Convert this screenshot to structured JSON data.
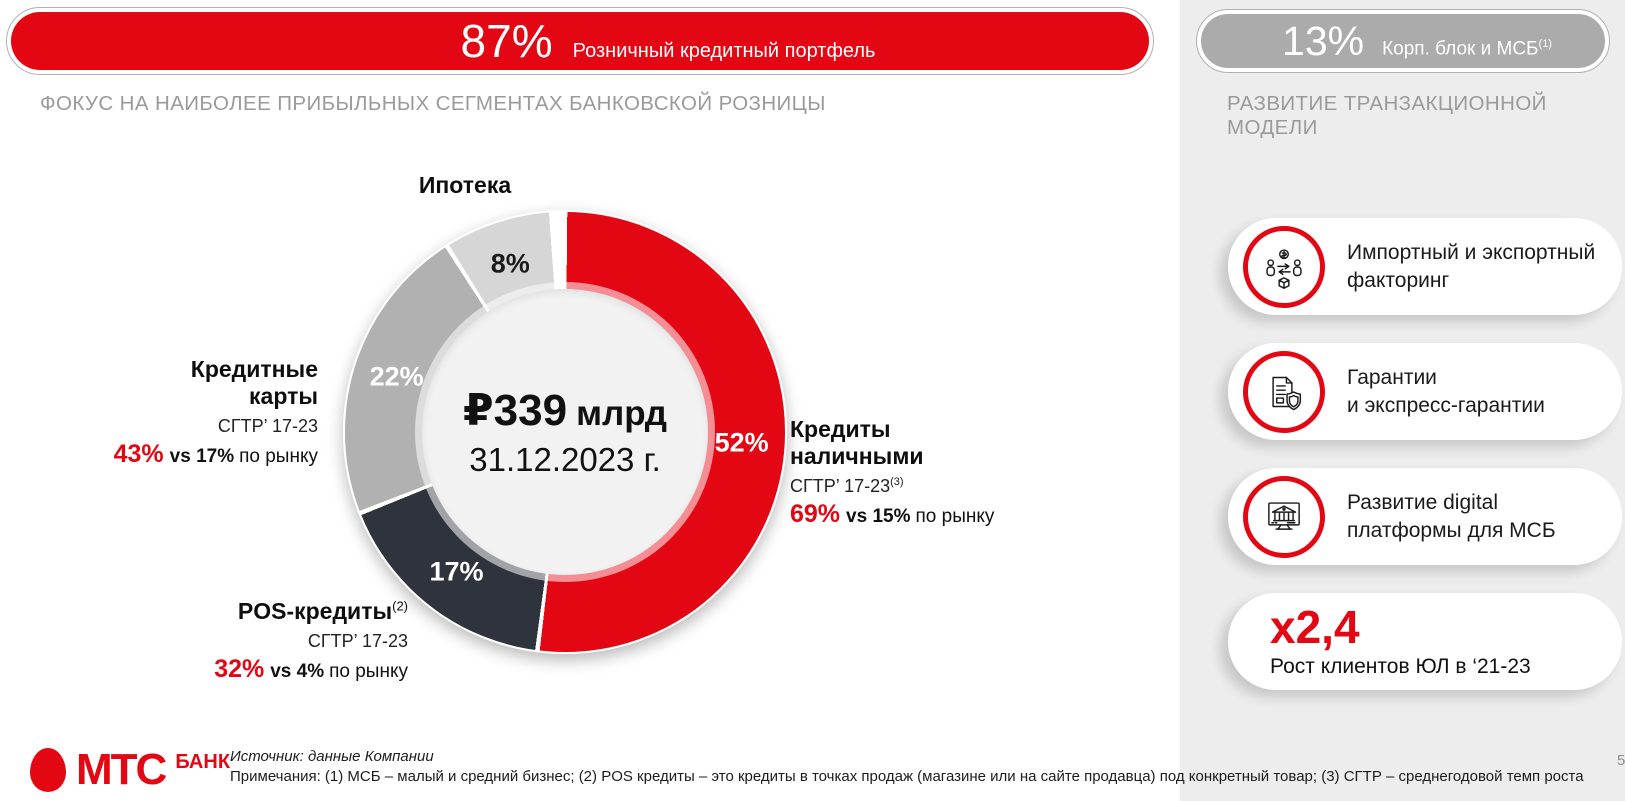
{
  "banners": {
    "retail": {
      "value": "87%",
      "label": "Розничный кредитный портфель"
    },
    "corporate": {
      "value": "13%",
      "label": "Корп. блок и МСБ",
      "label_sup": "(1)"
    }
  },
  "sections": {
    "left_title": "ФОКУС НА НАИБОЛЕЕ ПРИБЫЛЬНЫХ СЕГМЕНТАХ БАНКОВСКОЙ РОЗНИЦЫ",
    "right_title": "РАЗВИТИЕ ТРАНЗАКЦИОННОЙ МОДЕЛИ"
  },
  "chart_data": {
    "type": "pie",
    "donut": true,
    "start_angle_deg": 0,
    "direction": "clockwise",
    "center_value_main": "₽339",
    "center_value_unit": "млрд",
    "center_date": "31.12.2023 г.",
    "segments": [
      {
        "label": "Кредиты наличными",
        "value_pct": 52,
        "color": "#e30613",
        "text_color": "#ffffff",
        "cagr": "СГТР’ 17-23",
        "cagr_sup": "(3)",
        "growth": "69%",
        "vs": "vs 15%",
        "suffix": "по рынку"
      },
      {
        "label": "POS-кредиты",
        "label_sup": "(2)",
        "value_pct": 17,
        "color": "#2f343c",
        "text_color": "#ffffff",
        "cagr": "СГТР’ 17-23",
        "growth": "32%",
        "vs": "vs 4%",
        "suffix": "по рынку"
      },
      {
        "label": "Кредитные карты",
        "value_pct": 22,
        "color": "#b1b1b1",
        "text_color": "#ffffff",
        "cagr": "СГТР’ 17-23",
        "growth": "43%",
        "vs": "vs 17%",
        "suffix": "по рынку"
      },
      {
        "label": "Ипотека",
        "value_pct": 8,
        "color": "#d6d6d6",
        "text_color": "#1a1a1a"
      }
    ]
  },
  "right_panel": {
    "cards": [
      {
        "icon": "factoring-icon",
        "text": "Импортный и экспортный\nфакторинг"
      },
      {
        "icon": "guarantee-icon",
        "text": "Гарантии\nи экспресс-гарантии"
      },
      {
        "icon": "digital-platform-icon",
        "text": "Развитие digital\nплатформы для МСБ"
      }
    ],
    "metric_card": {
      "value": "x2,4",
      "label": "Рост клиентов ЮЛ в ‘21-23"
    }
  },
  "footer": {
    "logo": {
      "brand": "МТС",
      "suffix": "БАНК"
    },
    "source": "Источник: данные Компании",
    "notes": "Примечания: (1) МСБ – малый и средний бизнес; (2) POS кредиты – это кредиты в точках продаж (магазине или на сайте продавца) под конкретный товар; (3) СГТР – среднегодовой темп роста",
    "page_number": "5"
  }
}
